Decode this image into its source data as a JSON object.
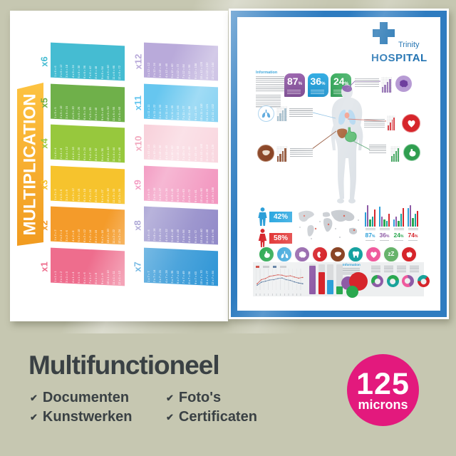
{
  "page": {
    "background_color": "#c6c7b1"
  },
  "caption": {
    "title": "Multifunctioneel",
    "check": "✔",
    "features": [
      "Documenten",
      "Kunstwerken",
      "Foto's",
      "Certificaten"
    ],
    "text_color": "#3a4144"
  },
  "badge": {
    "value": "125",
    "unit": "microns",
    "color": "#e3197d",
    "text_color": "#ffffff"
  },
  "poster_multiplication": {
    "title": "MULTIPLICATION",
    "banner_colors": {
      "top": "#fdc341",
      "bottom": "#f19b20"
    },
    "equation_text_color": "rgba(255,255,255,0.92)",
    "columns": [
      [
        {
          "label": "x6",
          "color": "#45bcd2",
          "rows": [
            "1 x 6 = 6",
            "2 x 6 = 12",
            "3 x 6 = 18",
            "4 x 6 = 24",
            "5 x 6 = 30",
            "6 x 6 = 36",
            "7 x 6 = 42",
            "8 x 6 = 48",
            "9 x 6 = 54",
            "10 x 6 = 60",
            "11 x 6 = 66",
            "12 x 6 = 72"
          ]
        },
        {
          "label": "x5",
          "color": "#6fb04a",
          "rows": [
            "1 x 5 = 5",
            "2 x 5 = 10",
            "3 x 5 = 15",
            "4 x 5 = 20",
            "5 x 5 = 25",
            "6 x 5 = 30",
            "7 x 5 = 35",
            "8 x 5 = 40",
            "9 x 5 = 45",
            "10 x 5 = 50",
            "11 x 5 = 55",
            "12 x 5 = 60"
          ]
        },
        {
          "label": "x4",
          "color": "#97c83d",
          "rows": [
            "1 x 4 = 4",
            "2 x 4 = 8",
            "3 x 4 = 12",
            "4 x 4 = 16",
            "5 x 4 = 20",
            "6 x 4 = 24",
            "7 x 4 = 28",
            "8 x 4 = 32",
            "9 x 4 = 36",
            "10 x 4 = 40",
            "11 x 4 = 44",
            "12 x 4 = 48"
          ]
        },
        {
          "label": "x3",
          "color": "#f6c32d",
          "rows": [
            "1 x 3 = 3",
            "2 x 3 = 6",
            "3 x 3 = 9",
            "4 x 3 = 12",
            "5 x 3 = 15",
            "6 x 3 = 18",
            "7 x 3 = 21",
            "8 x 3 = 24",
            "9 x 3 = 27",
            "10 x 3 = 30",
            "11 x 3 = 33",
            "12 x 3 = 36"
          ]
        },
        {
          "label": "x2",
          "color": "#f49b2a",
          "rows": [
            "1 x 2 = 2",
            "2 x 2 = 4",
            "3 x 2 = 6",
            "4 x 2 = 8",
            "5 x 2 = 10",
            "6 x 2 = 12",
            "7 x 2 = 14",
            "8 x 2 = 16",
            "9 x 2 = 18",
            "10 x 2 = 20",
            "11 x 2 = 22",
            "12 x 2 = 24"
          ]
        },
        {
          "label": "x1",
          "color": "#ee6d8d",
          "rows": [
            "1 x 1 = 1",
            "2 x 1 = 2",
            "3 x 1 = 3",
            "4 x 1 = 4",
            "5 x 1 = 5",
            "6 x 1 = 6",
            "7 x 1 = 7",
            "8 x 1 = 8",
            "9 x 1 = 9",
            "10 x 1 = 10",
            "11 x 1 = 11",
            "12 x 1 = 12"
          ]
        }
      ],
      [
        {
          "label": "x12",
          "color": "#b9aada",
          "rows": [
            "1 x 12 = 12",
            "2 x 12 = 24",
            "3 x 12 = 36",
            "4 x 12 = 48",
            "5 x 12 = 60",
            "6 x 12 = 72",
            "7 x 12 = 84",
            "8 x 12 = 96",
            "9 x 12 = 108",
            "10 x 12 = 120",
            "11 x 12 = 132",
            "12 x 12 = 144"
          ]
        },
        {
          "label": "x11",
          "color": "#66c6ef",
          "rows": [
            "1 x 11 = 11",
            "2 x 11 = 22",
            "3 x 11 = 33",
            "4 x 11 = 44",
            "5 x 11 = 55",
            "6 x 11 = 66",
            "7 x 11 = 77",
            "8 x 11 = 88",
            "9 x 11 = 99",
            "10 x 11 = 110",
            "11 x 11 = 121",
            "12 x 11 = 132"
          ]
        },
        {
          "label": "x10",
          "color": "#f8d0da",
          "label_color": "#f2a9be",
          "rows": [
            "1 x 10 = 10",
            "2 x 10 = 20",
            "3 x 10 = 30",
            "4 x 10 = 40",
            "5 x 10 = 50",
            "6 x 10 = 60",
            "7 x 10 = 70",
            "8 x 10 = 80",
            "9 x 10 = 90",
            "10 x 10 = 100",
            "11 x 10 = 110",
            "12 x 10 = 120"
          ]
        },
        {
          "label": "x9",
          "color": "#f18cb9",
          "rows": [
            "1 x 9 = 9",
            "2 x 9 = 18",
            "3 x 9 = 27",
            "4 x 9 = 36",
            "5 x 9 = 45",
            "6 x 9 = 54",
            "7 x 9 = 63",
            "8 x 9 = 72",
            "9 x 9 = 81",
            "10 x 9 = 90",
            "11 x 9 = 99",
            "12 x 9 = 108"
          ]
        },
        {
          "label": "x8",
          "color": "#8d85c6",
          "rows": [
            "1 x 8 = 8",
            "2 x 8 = 16",
            "3 x 8 = 24",
            "4 x 8 = 32",
            "5 x 8 = 40",
            "6 x 8 = 48",
            "7 x 8 = 56",
            "8 x 8 = 64",
            "9 x 8 = 72",
            "10 x 8 = 80",
            "11 x 8 = 88",
            "12 x 8 = 96"
          ]
        },
        {
          "label": "x7",
          "color": "#3096d6",
          "rows": [
            "1 x 7 = 7",
            "2 x 7 = 14",
            "3 x 7 = 21",
            "4 x 7 = 28",
            "5 x 7 = 35",
            "6 x 7 = 42",
            "7 x 7 = 49",
            "8 x 7 = 56",
            "9 x 7 = 63",
            "10 x 7 = 70",
            "11 x 7 = 77",
            "12 x 7 = 84"
          ]
        }
      ]
    ]
  },
  "poster_hospital": {
    "frame_color": "#2e7cc0",
    "brand": {
      "name": "Trinity",
      "subname": "HOSPITAL",
      "color": "#2273b2"
    },
    "info_title": "Information",
    "info2_title": "Information",
    "info_title_color": "#2d9fd8",
    "stat_badges": [
      {
        "value": "87",
        "suffix": "%",
        "color": "#9b64ae",
        "color2": "#7e4f93"
      },
      {
        "value": "36",
        "suffix": "%",
        "color": "#35aee4",
        "color2": "#1f92cc"
      },
      {
        "value": "24",
        "suffix": "%",
        "color": "#37ad5c",
        "color2": "#1f9447"
      }
    ],
    "callouts": [
      {
        "organ": "brain",
        "circle_bg": "#b79bd4",
        "ring": "#ffffff",
        "glyph": "#6f3f9e",
        "chart": "#8a62ad",
        "line": "#8a62ad"
      },
      {
        "organ": "lungs",
        "circle_bg": "#ffffff",
        "ring": "#a9d2ee",
        "glyph": "#5aa8dd",
        "chart": "#9db8c8",
        "line": "#85bce2"
      },
      {
        "organ": "heart",
        "circle_bg": "#d6252b",
        "ring": "#e88a8d",
        "glyph": "#ffffff",
        "chart": "#d6252b",
        "line": "#cf6f66"
      },
      {
        "organ": "liver",
        "circle_bg": "#8a4526",
        "ring": "#b5836a",
        "glyph": "#ecdccb",
        "chart": "#8a4526",
        "line": "#8a4526"
      },
      {
        "organ": "stomach",
        "circle_bg": "#2f9e4f",
        "ring": "#8fcda4",
        "glyph": "#ffffff",
        "chart": "#2f9e4f",
        "line": "#63ab7c"
      }
    ],
    "gender_stats": [
      {
        "icon": "male",
        "icon_color": "#2d9fd8",
        "value": "42%",
        "box_color": "#2aa7e0"
      },
      {
        "icon": "female",
        "icon_color": "#d6252b",
        "value": "58%",
        "box_color": "#e02b2b"
      }
    ],
    "group_charts": {
      "bar_colors": [
        "#2d9fd8",
        "#8e5ba6",
        "#2aa84f",
        "#18a39b",
        "#d6252b"
      ],
      "groups": [
        {
          "label": "87",
          "suffix": "%",
          "label_color": "#2d9fd8",
          "bars": [
            20,
            30,
            10,
            14,
            24
          ]
        },
        {
          "label": "36",
          "suffix": "%",
          "label_color": "#8e5ba6",
          "bars": [
            28,
            14,
            10,
            8,
            18
          ]
        },
        {
          "label": "24",
          "suffix": "%",
          "label_color": "#2aa84f",
          "bars": [
            10,
            14,
            8,
            18,
            26
          ]
        },
        {
          "label": "74",
          "suffix": "%",
          "label_color": "#d6252b",
          "bars": [
            26,
            30,
            12,
            18,
            22
          ]
        }
      ]
    },
    "organ_icons": [
      {
        "name": "stomach",
        "color": "#2aa84f"
      },
      {
        "name": "lungs",
        "color": "#2d9fd8"
      },
      {
        "name": "brain",
        "color": "#8e5ba6"
      },
      {
        "name": "kidney",
        "color": "#d6252b"
      },
      {
        "name": "liver",
        "color": "#8a4526"
      },
      {
        "name": "tooth",
        "color": "#16a2a0"
      },
      {
        "name": "heart",
        "color": "#ef5a9d"
      },
      {
        "name": "sleep",
        "color": "#67b36b"
      },
      {
        "name": "apple",
        "color": "#d6252b"
      }
    ],
    "line_chart": {
      "series": [
        {
          "color": "#cf4b43",
          "values": [
            30,
            52,
            58,
            70,
            74,
            78,
            76,
            70,
            73,
            66,
            60,
            64
          ]
        },
        {
          "color": "#4a6d96",
          "values": [
            22,
            38,
            44,
            50,
            52,
            58,
            61,
            52,
            48,
            40,
            34,
            30
          ]
        }
      ]
    },
    "bar_chart": {
      "track_color": "#d9dbdd",
      "bars": [
        {
          "color": "#8e5ba6",
          "pct": 95
        },
        {
          "color": "#d6252b",
          "pct": 74
        },
        {
          "color": "#2d9fd8",
          "pct": 48
        },
        {
          "color": "#2aa84f",
          "pct": 26
        }
      ]
    },
    "bubbles": [
      {
        "color": "#8e5ba6",
        "d": 19,
        "x": 2,
        "y": 8
      },
      {
        "color": "#d6252b",
        "d": 26,
        "x": 13,
        "y": 2
      },
      {
        "color": "#2aa84f",
        "d": 17,
        "x": 9,
        "y": 21
      }
    ],
    "donuts": [
      {
        "a": "#8e5ba6",
        "b": "#2aa84f",
        "split": 68
      },
      {
        "a": "#18a39b",
        "b": "#2aa84f",
        "split": 60
      },
      {
        "a": "#ef5a9d",
        "b": "#8e5ba6",
        "split": 55
      },
      {
        "a": "#d6252b",
        "b": "#18a39b",
        "split": 64
      }
    ],
    "body_color": "#dde2e7",
    "organ_colors": {
      "brain": "#7d4fa5",
      "lungs": "#aed4ef",
      "heart": "#f09480",
      "liver": "#9c4f1e",
      "stomach": "#53b86a"
    }
  }
}
